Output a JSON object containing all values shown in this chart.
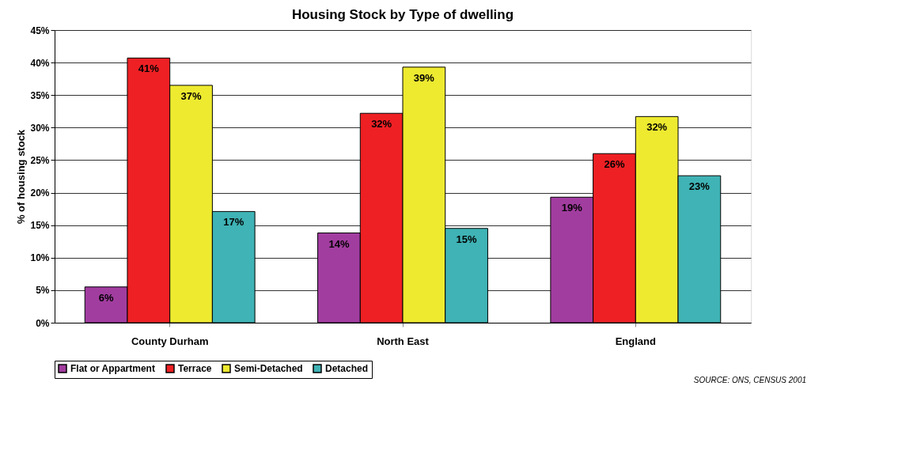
{
  "chart_data": {
    "type": "bar",
    "title": "Housing Stock by Type of dwelling",
    "ylabel": "% of housing stock",
    "categories": [
      "County Durham",
      "North East",
      "England"
    ],
    "series": [
      {
        "name": "Flat or Appartment",
        "color": "#a23da0",
        "values": [
          5.5,
          13.8,
          19.3
        ],
        "value_labels": [
          "6%",
          "14%",
          "19%"
        ]
      },
      {
        "name": "Terrace",
        "color": "#ee2024",
        "values": [
          40.7,
          32.2,
          26.0
        ],
        "value_labels": [
          "41%",
          "32%",
          "26%"
        ]
      },
      {
        "name": "Semi-Detached",
        "color": "#eeea30",
        "values": [
          36.5,
          39.3,
          31.7
        ],
        "value_labels": [
          "37%",
          "39%",
          "32%"
        ]
      },
      {
        "name": "Detached",
        "color": "#3fb3b5",
        "values": [
          17.1,
          14.5,
          22.6
        ],
        "value_labels": [
          "17%",
          "15%",
          "23%"
        ]
      }
    ],
    "ylim": [
      0,
      45
    ],
    "yticks": [
      {
        "value": 0,
        "label": "0%"
      },
      {
        "value": 5,
        "label": "5%"
      },
      {
        "value": 10,
        "label": "10%"
      },
      {
        "value": 15,
        "label": "15%"
      },
      {
        "value": 20,
        "label": "20%"
      },
      {
        "value": 25,
        "label": "25%"
      },
      {
        "value": 30,
        "label": "30%"
      },
      {
        "value": 35,
        "label": "35%"
      },
      {
        "value": 40,
        "label": "40%"
      },
      {
        "value": 45,
        "label": "45%"
      }
    ],
    "grid": "y",
    "legend": "bottom",
    "annotations": [
      "SOURCE: ONS, CENSUS 2001"
    ]
  }
}
